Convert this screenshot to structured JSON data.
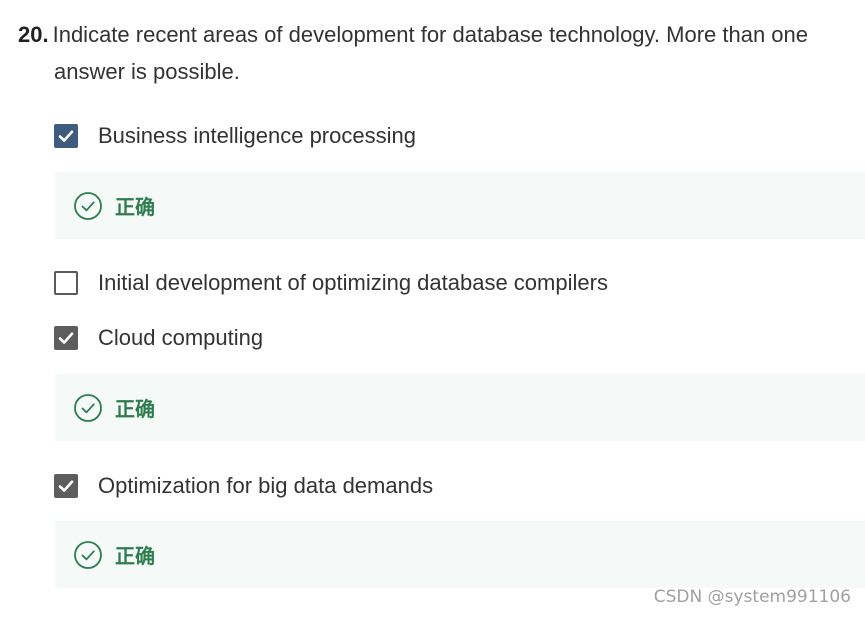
{
  "question": {
    "number": "20.",
    "text_line1": "Indicate recent areas of development for database technology. More than one",
    "text_line2": "answer is possible."
  },
  "options": [
    {
      "label": "Business intelligence processing",
      "checked": true,
      "feedback": "正确"
    },
    {
      "label": "Initial development of optimizing database compilers",
      "checked": false
    },
    {
      "label": "Cloud computing",
      "checked": true,
      "feedback": "正确"
    },
    {
      "label": "Optimization for big data demands",
      "checked": true,
      "feedback": "正确"
    }
  ],
  "watermark": "CSDN @system991106",
  "colors": {
    "checkbox_focused": "#3f5b7e",
    "checkbox_checked": "#5d5d5d",
    "correct_text": "#2e7d4f",
    "feedback_bg": "#f5f9f7"
  },
  "icons": {
    "check": "checkmark-icon",
    "correct": "check-circle-icon"
  }
}
